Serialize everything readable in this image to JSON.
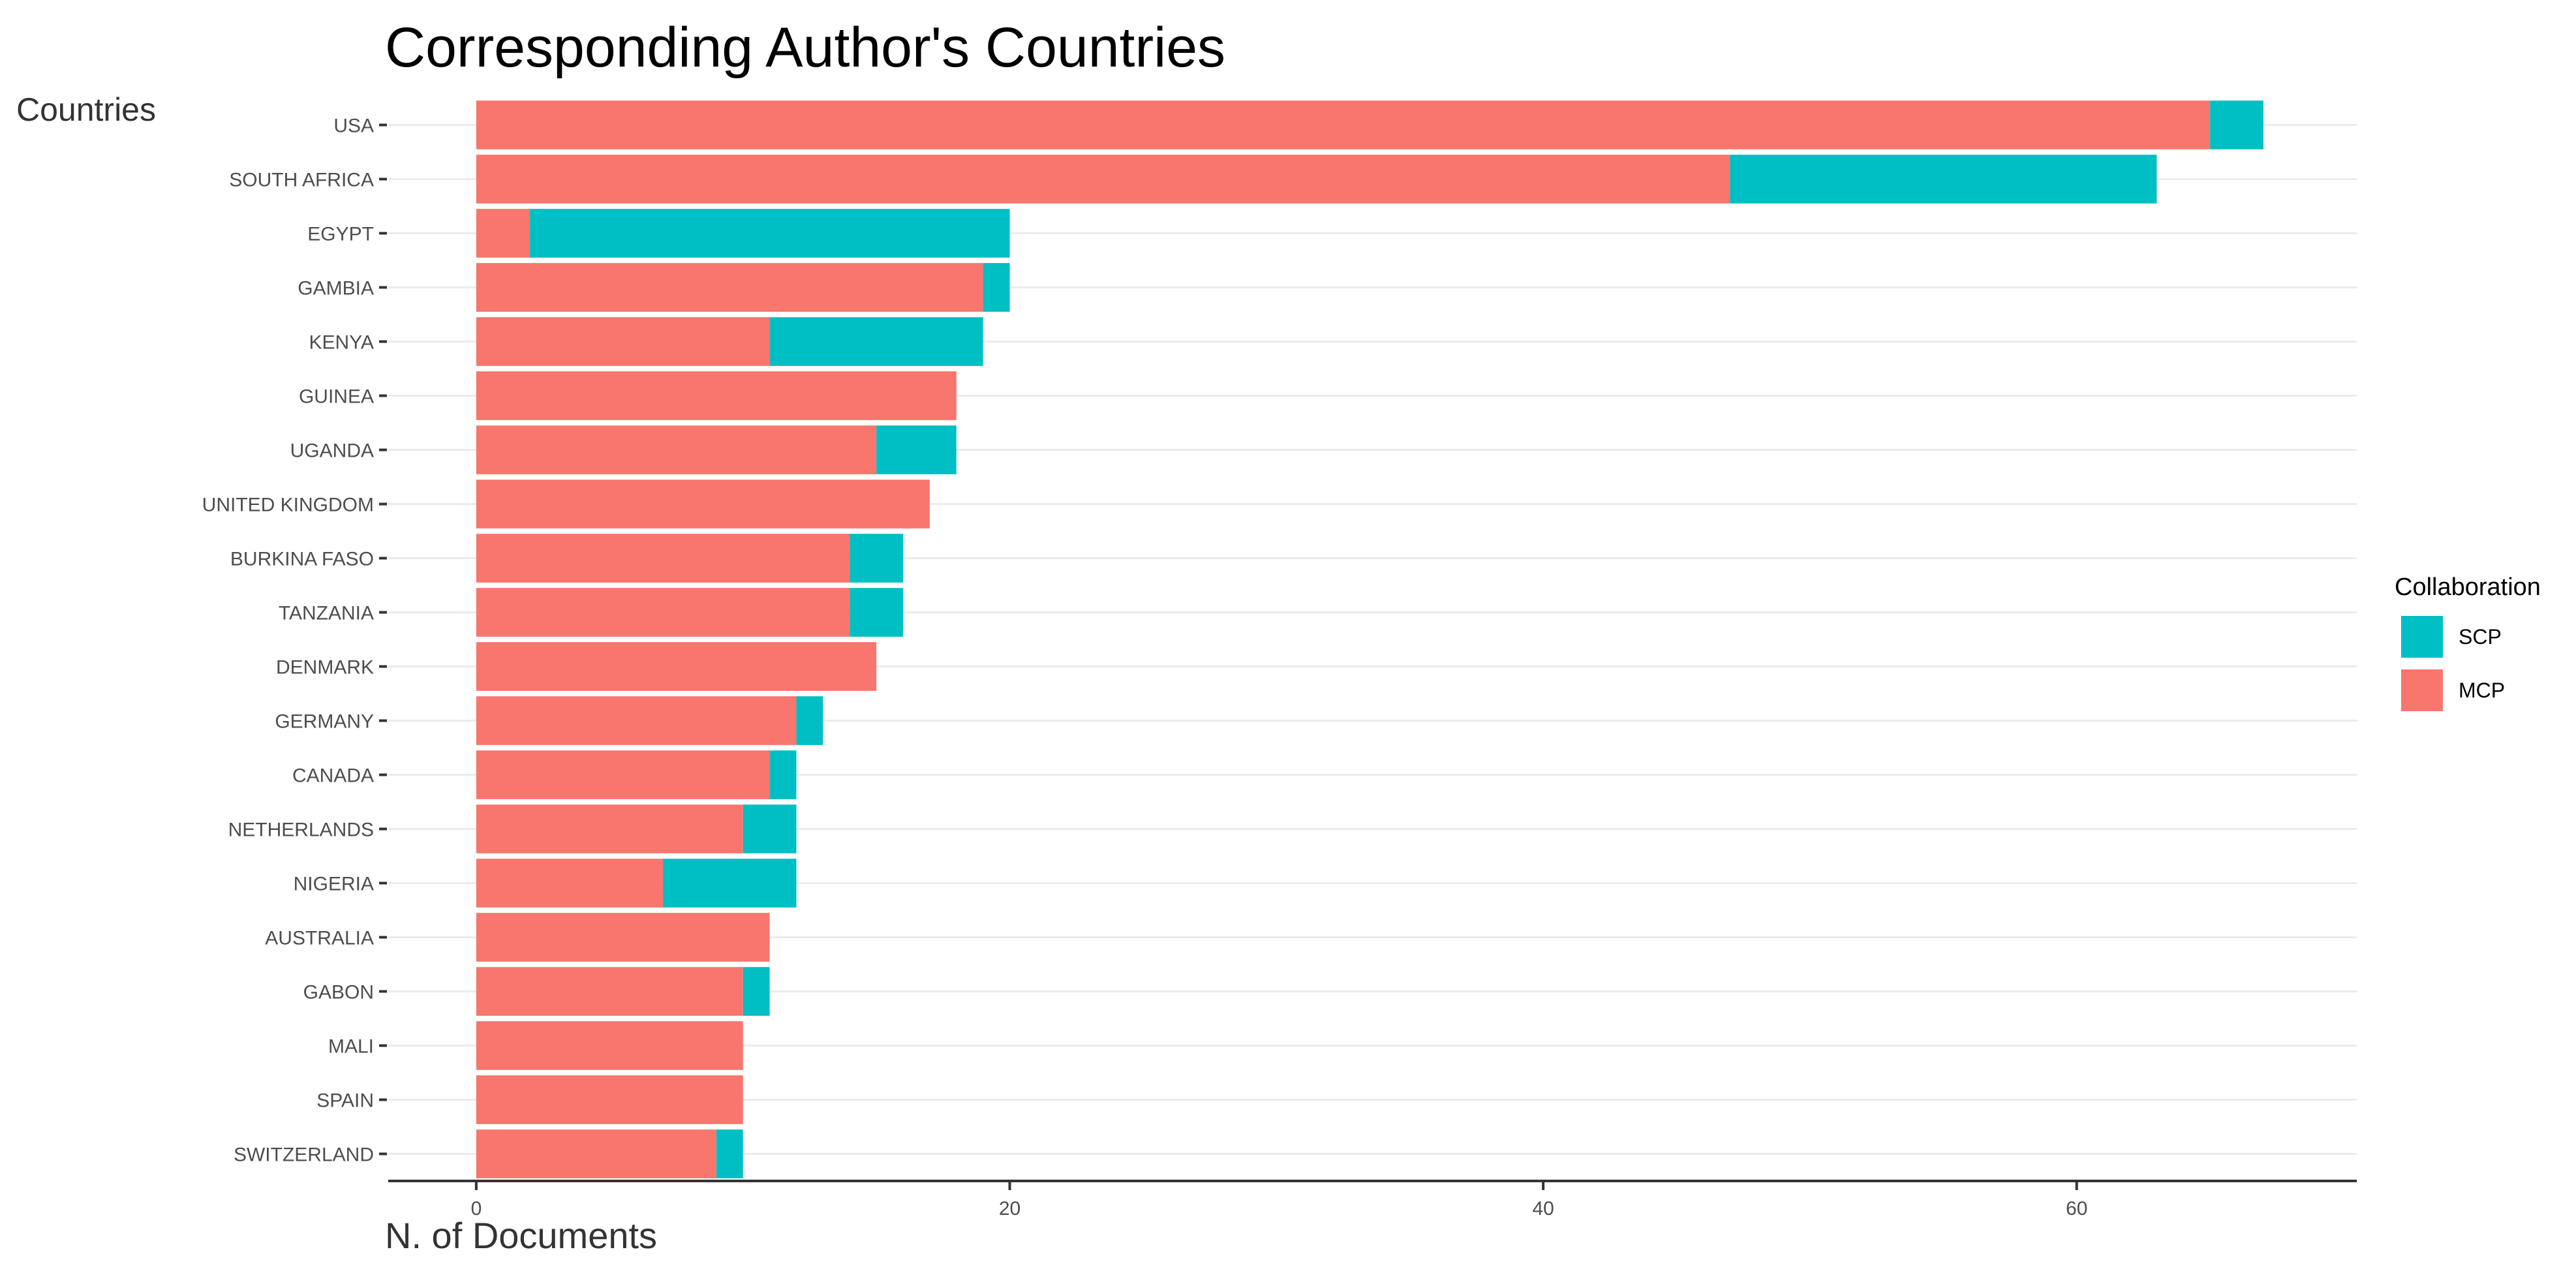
{
  "chart_data": {
    "type": "bar",
    "orientation": "horizontal",
    "stacked": true,
    "title": "Corresponding Author's Countries",
    "xlabel": "N. of Documents",
    "ylabel": "Countries",
    "xlim": [
      -3.3,
      70.5
    ],
    "xticks": [
      0,
      20,
      40,
      60
    ],
    "grid": true,
    "legend_position": "right",
    "legend": {
      "title": "Collaboration",
      "entries": [
        {
          "name": "SCP",
          "color": "#00BFC4"
        },
        {
          "name": "MCP",
          "color": "#F8766D"
        }
      ]
    },
    "categories": [
      "USA",
      "SOUTH AFRICA",
      "EGYPT",
      "GAMBIA",
      "KENYA",
      "GUINEA",
      "UGANDA",
      "UNITED KINGDOM",
      "BURKINA FASO",
      "TANZANIA",
      "DENMARK",
      "GERMANY",
      "CANADA",
      "NETHERLANDS",
      "NIGERIA",
      "AUSTRALIA",
      "GABON",
      "MALI",
      "SPAIN",
      "SWITZERLAND"
    ],
    "series": [
      {
        "name": "MCP",
        "color": "#F8766D",
        "values": [
          65,
          47,
          2,
          19,
          11,
          18,
          15,
          17,
          14,
          14,
          15,
          12,
          11,
          10,
          7,
          11,
          10,
          10,
          10,
          9
        ]
      },
      {
        "name": "SCP",
        "color": "#00BFC4",
        "values": [
          2,
          16,
          18,
          1,
          8,
          0,
          3,
          0,
          2,
          2,
          0,
          1,
          1,
          2,
          5,
          0,
          1,
          0,
          0,
          1
        ]
      }
    ]
  }
}
